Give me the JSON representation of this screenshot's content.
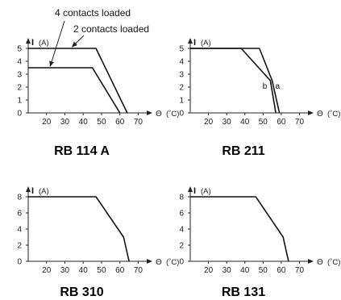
{
  "chart_data": [
    {
      "type": "line",
      "title": "RB 114 A",
      "ylabel": "I",
      "yunit": "(A)",
      "xlabel": "Θ",
      "xunit": "(˚C)",
      "xlim": [
        10,
        72
      ],
      "ylim": [
        0,
        5
      ],
      "xticks": [
        20,
        30,
        40,
        50,
        60,
        70
      ],
      "yticks": [
        0,
        1,
        2,
        3,
        4,
        5
      ],
      "series": [
        {
          "name": "2 contacts loaded",
          "points": [
            [
              10,
              5
            ],
            [
              47,
              5
            ],
            [
              64,
              0
            ]
          ]
        },
        {
          "name": "4 contacts loaded",
          "points": [
            [
              10,
              3.5
            ],
            [
              45,
              3.5
            ],
            [
              60,
              0
            ]
          ]
        }
      ]
    },
    {
      "type": "line",
      "title": "RB 211",
      "ylabel": "I",
      "yunit": "(A)",
      "xlabel": "Θ",
      "xunit": "(˚C)",
      "xlim": [
        10,
        72
      ],
      "ylim": [
        0,
        5
      ],
      "xticks": [
        20,
        30,
        40,
        50,
        60,
        70
      ],
      "yticks": [
        0,
        1,
        2,
        3,
        4,
        5
      ],
      "series": [
        {
          "name": "a",
          "points": [
            [
              10,
              5
            ],
            [
              48,
              5
            ],
            [
              55,
              2.5
            ],
            [
              59,
              0
            ]
          ]
        },
        {
          "name": "b",
          "points": [
            [
              10,
              5
            ],
            [
              38,
              5
            ],
            [
              54,
              2.5
            ],
            [
              57,
              0
            ]
          ]
        }
      ]
    },
    {
      "type": "line",
      "title": "RB 310",
      "ylabel": "I",
      "yunit": "(A)",
      "xlabel": "Θ",
      "xunit": "(˚C)",
      "xlim": [
        10,
        72
      ],
      "ylim": [
        0,
        8
      ],
      "xticks": [
        20,
        30,
        40,
        50,
        60,
        70
      ],
      "yticks": [
        0,
        2,
        4,
        6,
        8
      ],
      "series": [
        {
          "points": [
            [
              10,
              8
            ],
            [
              47,
              8
            ],
            [
              62,
              3
            ],
            [
              65,
              0
            ]
          ]
        }
      ]
    },
    {
      "type": "line",
      "title": "RB 131",
      "ylabel": "I",
      "yunit": "(A)",
      "xlabel": "Θ",
      "xunit": "(˚C)",
      "xlim": [
        10,
        72
      ],
      "ylim": [
        0,
        8
      ],
      "xticks": [
        20,
        30,
        40,
        50,
        60,
        70
      ],
      "yticks": [
        0,
        2,
        4,
        6,
        8
      ],
      "series": [
        {
          "points": [
            [
              10,
              8
            ],
            [
              46,
              8
            ],
            [
              61,
              3
            ],
            [
              64,
              0
            ]
          ]
        }
      ]
    }
  ]
}
